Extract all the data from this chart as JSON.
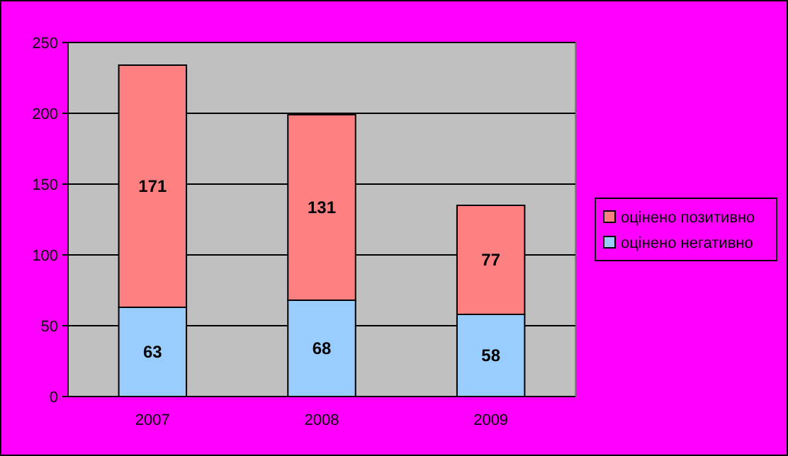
{
  "chart_data": {
    "type": "bar",
    "stacked": true,
    "categories": [
      "2007",
      "2008",
      "2009"
    ],
    "series": [
      {
        "name": "оцінено негативно",
        "color": "#99ccff",
        "values": [
          63,
          68,
          58
        ]
      },
      {
        "name": "оцінено позитивно",
        "color": "#ff8080",
        "values": [
          171,
          131,
          77
        ]
      }
    ],
    "ylim": [
      0,
      250
    ],
    "yticks": [
      0,
      50,
      100,
      150,
      200,
      250
    ],
    "grid": "y",
    "legend": "right",
    "data_labels": true
  }
}
